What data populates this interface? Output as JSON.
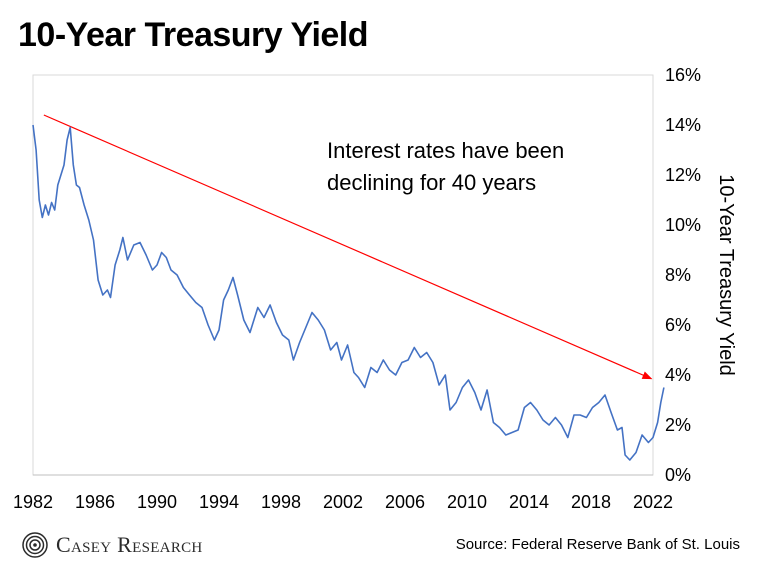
{
  "chart_data": {
    "type": "line",
    "title": "10-Year Treasury Yield",
    "ylabel": "10-Year Treasury Yield",
    "y_axis_side": "right",
    "ylim": [
      0,
      16
    ],
    "xlim": [
      1982,
      2022
    ],
    "x_ticks": [
      "1982",
      "1986",
      "1990",
      "1994",
      "1998",
      "2002",
      "2006",
      "2010",
      "2014",
      "2018",
      "2022"
    ],
    "y_ticks": [
      "0%",
      "2%",
      "4%",
      "6%",
      "8%",
      "10%",
      "12%",
      "14%",
      "16%"
    ],
    "grid": false,
    "series": [
      {
        "color": "#4472c4",
        "x": [
          1982.0,
          1982.2,
          1982.4,
          1982.6,
          1982.8,
          1983.0,
          1983.2,
          1983.4,
          1983.6,
          1983.8,
          1984.0,
          1984.2,
          1984.4,
          1984.6,
          1984.8,
          1985.0,
          1985.3,
          1985.6,
          1985.9,
          1986.2,
          1986.5,
          1986.8,
          1987.0,
          1987.3,
          1987.6,
          1987.8,
          1988.1,
          1988.5,
          1988.9,
          1989.3,
          1989.7,
          1990.0,
          1990.3,
          1990.6,
          1990.9,
          1991.3,
          1991.7,
          1992.1,
          1992.5,
          1992.9,
          1993.3,
          1993.7,
          1994.0,
          1994.3,
          1994.6,
          1994.9,
          1995.2,
          1995.6,
          1996.0,
          1996.5,
          1996.9,
          1997.3,
          1997.7,
          1998.1,
          1998.5,
          1998.8,
          1999.2,
          1999.6,
          2000.0,
          2000.4,
          2000.8,
          2001.2,
          2001.6,
          2001.9,
          2002.3,
          2002.7,
          2003.0,
          2003.4,
          2003.8,
          2004.2,
          2004.6,
          2005.0,
          2005.4,
          2005.8,
          2006.2,
          2006.6,
          2007.0,
          2007.4,
          2007.8,
          2008.2,
          2008.6,
          2008.9,
          2009.3,
          2009.7,
          2010.1,
          2010.5,
          2010.9,
          2011.3,
          2011.7,
          2012.1,
          2012.5,
          2012.9,
          2013.3,
          2013.7,
          2014.1,
          2014.5,
          2014.9,
          2015.3,
          2015.7,
          2016.1,
          2016.5,
          2016.9,
          2017.3,
          2017.7,
          2018.1,
          2018.5,
          2018.9,
          2019.3,
          2019.7,
          2020.0,
          2020.2,
          2020.5,
          2020.9,
          2021.3,
          2021.7,
          2022.0,
          2022.3,
          2022.5,
          2022.7
        ],
        "values": [
          14.0,
          13.0,
          11.0,
          10.3,
          10.8,
          10.4,
          10.9,
          10.6,
          11.6,
          12.0,
          12.4,
          13.4,
          13.9,
          12.4,
          11.6,
          11.5,
          10.8,
          10.2,
          9.4,
          7.8,
          7.2,
          7.4,
          7.1,
          8.4,
          9.0,
          9.5,
          8.6,
          9.2,
          9.3,
          8.8,
          8.2,
          8.4,
          8.9,
          8.7,
          8.2,
          8.0,
          7.5,
          7.2,
          6.9,
          6.7,
          6.0,
          5.4,
          5.8,
          7.0,
          7.4,
          7.9,
          7.2,
          6.2,
          5.7,
          6.7,
          6.3,
          6.8,
          6.1,
          5.6,
          5.4,
          4.6,
          5.3,
          5.9,
          6.5,
          6.2,
          5.8,
          5.0,
          5.3,
          4.6,
          5.2,
          4.1,
          3.9,
          3.5,
          4.3,
          4.1,
          4.6,
          4.2,
          4.0,
          4.5,
          4.6,
          5.1,
          4.7,
          4.9,
          4.5,
          3.6,
          4.0,
          2.6,
          2.9,
          3.5,
          3.8,
          3.3,
          2.6,
          3.4,
          2.1,
          1.9,
          1.6,
          1.7,
          1.8,
          2.7,
          2.9,
          2.6,
          2.2,
          2.0,
          2.3,
          2.0,
          1.5,
          2.4,
          2.4,
          2.3,
          2.7,
          2.9,
          3.2,
          2.5,
          1.8,
          1.9,
          0.8,
          0.6,
          0.9,
          1.6,
          1.3,
          1.5,
          2.1,
          2.9,
          3.5
        ]
      }
    ],
    "annotations": [
      {
        "text_line1": "Interest rates have been",
        "text_line2": "declining for 40 years"
      }
    ],
    "trend_arrow": {
      "color": "#ff0000",
      "from": [
        1982.7,
        14.4
      ],
      "to": [
        2021.9,
        3.85
      ]
    }
  },
  "brand": {
    "name": "Casey Research",
    "icon": "spiral-logo-icon",
    "color": "#2b2b2b"
  },
  "source_note": "Source: Federal Reserve Bank of St. Louis"
}
